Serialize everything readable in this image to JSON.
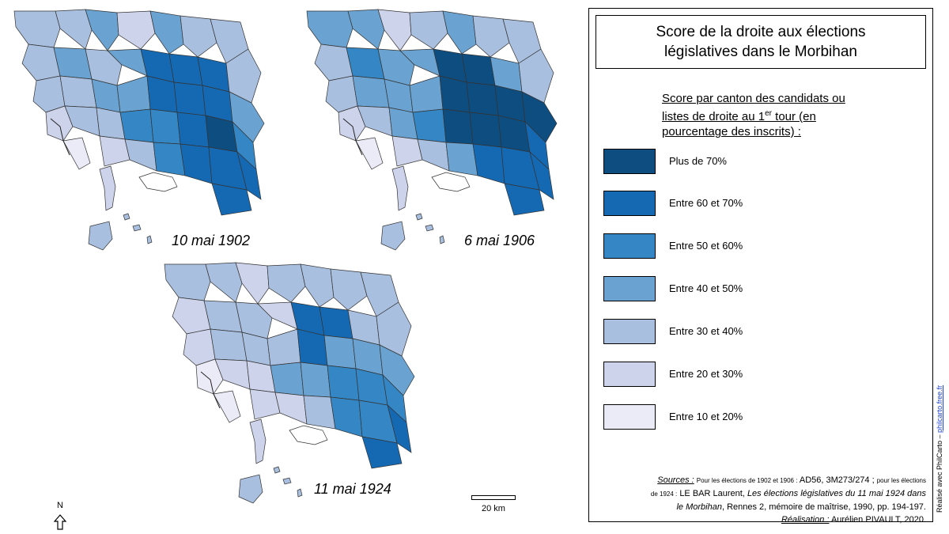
{
  "colors": {
    "class_70_plus": "#0e4d80",
    "class_60_70": "#1569b3",
    "class_50_60": "#3487c4",
    "class_40_50": "#6aa3d1",
    "class_30_40": "#a9bfdf",
    "class_20_30": "#cdd3ea",
    "class_10_20": "#ebebf7",
    "border": "#333333"
  },
  "maps": [
    {
      "label": "10 mai 1902"
    },
    {
      "label": "6 mai 1906"
    },
    {
      "label": "11 mai 1924"
    }
  ],
  "legend": {
    "title_line1": "Score de la droite aux élections",
    "title_line2": "législatives dans le Morbihan",
    "heading_line1": "Score par canton des candidats ou",
    "heading_line2_before": "listes de droite au 1",
    "heading_sup": "er",
    "heading_line2_after": " tour (en",
    "heading_line3": "pourcentage des inscrits) :",
    "items": [
      {
        "label": "Plus de 70%",
        "color_key": "class_70_plus"
      },
      {
        "label": "Entre 60 et 70%",
        "color_key": "class_60_70"
      },
      {
        "label": "Entre 50 et 60%",
        "color_key": "class_50_60"
      },
      {
        "label": "Entre 40 et 50%",
        "color_key": "class_40_50"
      },
      {
        "label": "Entre 30 et 40%",
        "color_key": "class_30_40"
      },
      {
        "label": "Entre 20 et 30%",
        "color_key": "class_20_30"
      },
      {
        "label": "Entre 10 et 20%",
        "color_key": "class_10_20"
      }
    ]
  },
  "sources": {
    "sources_label": "Sources :",
    "sources_small_1": "Pour les élections de 1902 et 1906 :",
    "sources_ref_1": "AD56, 3M273/274 ;",
    "sources_small_2": "pour les élections",
    "sources_small_3": "de 1924 :",
    "sources_author": "LE BAR Laurent,",
    "sources_book_1": "Les élections législatives du 11 mai 1924 dans",
    "sources_book_2": "le Morbihan",
    "sources_tail": ", Rennes 2, mémoire de maîtrise, 1990, pp. 194-197.",
    "realisation_label": "Réalisation :",
    "realisation_value": "Aurélien PIVAULT,  2020."
  },
  "north_label": "N",
  "scale_label": "20 km",
  "credit": {
    "prefix": "Réalisé avec PhilCarto – ",
    "link": "philcarto.free.fr"
  }
}
